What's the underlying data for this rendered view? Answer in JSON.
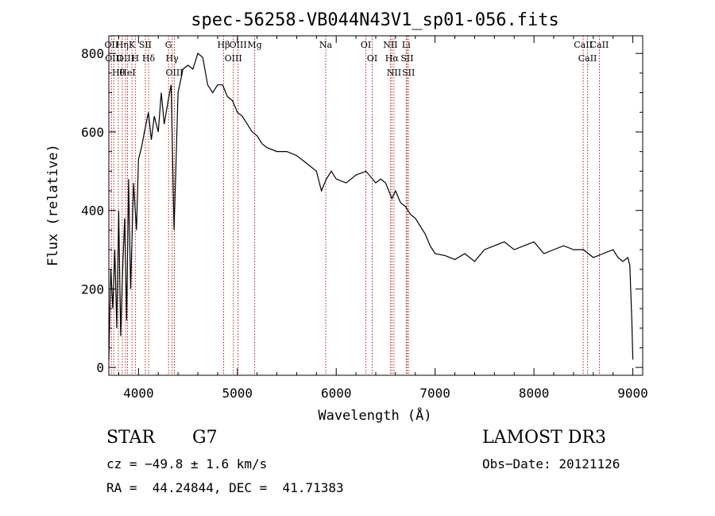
{
  "chart_data": {
    "type": "line",
    "title": "spec-56258-VB044N43V1_sp01-056.fits",
    "xlabel": "Wavelength (Å)",
    "ylabel": "Flux (relative)",
    "xlim": [
      3700,
      9100
    ],
    "ylim": [
      -20,
      845
    ],
    "xticks": [
      4000,
      5000,
      6000,
      7000,
      8000,
      9000
    ],
    "yticks": [
      0,
      200,
      400,
      600,
      800
    ],
    "grid": false,
    "line_color": "#000000",
    "marker_color": "#b22222",
    "series": [
      {
        "x": [
          3700,
          3720,
          3740,
          3760,
          3780,
          3800,
          3820,
          3840,
          3860,
          3880,
          3900,
          3920,
          3950,
          3980,
          4000,
          4030,
          4060,
          4100,
          4130,
          4160,
          4200,
          4230,
          4260,
          4300,
          4330,
          4360,
          4400,
          4450,
          4500,
          4550,
          4600,
          4650,
          4700,
          4750,
          4800,
          4850,
          4900,
          4950,
          5000,
          5050,
          5100,
          5150,
          5200,
          5250,
          5300,
          5400,
          5500,
          5600,
          5700,
          5800,
          5850,
          5900,
          5950,
          6000,
          6100,
          6200,
          6300,
          6400,
          6450,
          6500,
          6563,
          6600,
          6650,
          6700,
          6750,
          6800,
          6850,
          6900,
          6950,
          7000,
          7100,
          7200,
          7300,
          7400,
          7500,
          7600,
          7700,
          7800,
          7900,
          8000,
          8100,
          8200,
          8300,
          8400,
          8500,
          8600,
          8700,
          8800,
          8850,
          8900,
          8950,
          8970,
          8990,
          9000
        ],
        "values": [
          20,
          250,
          150,
          300,
          100,
          400,
          80,
          250,
          380,
          120,
          480,
          200,
          470,
          350,
          530,
          560,
          600,
          650,
          580,
          640,
          600,
          700,
          620,
          680,
          720,
          350,
          700,
          760,
          770,
          760,
          800,
          790,
          720,
          700,
          720,
          720,
          690,
          680,
          650,
          640,
          620,
          600,
          590,
          570,
          560,
          550,
          550,
          540,
          520,
          500,
          450,
          480,
          500,
          480,
          470,
          490,
          500,
          470,
          480,
          470,
          430,
          450,
          420,
          410,
          390,
          380,
          360,
          340,
          310,
          290,
          285,
          275,
          290,
          270,
          300,
          310,
          320,
          300,
          310,
          320,
          290,
          300,
          310,
          300,
          300,
          280,
          290,
          300,
          280,
          270,
          280,
          260,
          120,
          20
        ]
      }
    ],
    "line_markers": [
      {
        "wavelength": 3727,
        "label": "OII"
      },
      {
        "wavelength": 3750,
        "label": "OIII"
      },
      {
        "wavelength": 3797,
        "label": "Hθ"
      },
      {
        "wavelength": 3835,
        "label": "Hη"
      },
      {
        "wavelength": 3869,
        "label": "OIII"
      },
      {
        "wavelength": 3889,
        "label": "HeI"
      },
      {
        "wavelength": 3934,
        "label": "K"
      },
      {
        "wavelength": 3968,
        "label": "H"
      },
      {
        "wavelength": 4069,
        "label": "SII"
      },
      {
        "wavelength": 4102,
        "label": "Hδ"
      },
      {
        "wavelength": 4304,
        "label": "G"
      },
      {
        "wavelength": 4340,
        "label": "Hγ"
      },
      {
        "wavelength": 4363,
        "label": "OIII"
      },
      {
        "wavelength": 4861,
        "label": "Hβ"
      },
      {
        "wavelength": 4959,
        "label": "OIII"
      },
      {
        "wavelength": 5007,
        "label": "OIII"
      },
      {
        "wavelength": 5175,
        "label": "Mg"
      },
      {
        "wavelength": 5894,
        "label": "Na"
      },
      {
        "wavelength": 6300,
        "label": "OI"
      },
      {
        "wavelength": 6364,
        "label": "OI"
      },
      {
        "wavelength": 6548,
        "label": "NII"
      },
      {
        "wavelength": 6563,
        "label": "Hα"
      },
      {
        "wavelength": 6584,
        "label": "NII"
      },
      {
        "wavelength": 6708,
        "label": "Li"
      },
      {
        "wavelength": 6717,
        "label": "SII"
      },
      {
        "wavelength": 6731,
        "label": "SII"
      },
      {
        "wavelength": 8498,
        "label": "CaII"
      },
      {
        "wavelength": 8542,
        "label": "CaII"
      },
      {
        "wavelength": 8662,
        "label": "CaII"
      }
    ]
  },
  "info": {
    "object_class": "STAR",
    "subclass": "G7",
    "survey": "LAMOST DR3",
    "cz": "cz = −49.8 ± 1.6 km/s",
    "obs_date": "Obs−Date: 20121126",
    "coords": "RA =  44.24844, DEC =  41.71383"
  }
}
